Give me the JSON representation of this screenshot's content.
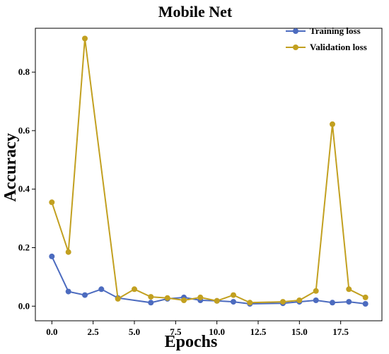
{
  "chart_data": {
    "type": "line",
    "title": "Mobile Net",
    "xlabel": "Epochs",
    "ylabel": "Accuracy",
    "xlim": [
      -1.0,
      20.0
    ],
    "ylim": [
      -0.05,
      0.95
    ],
    "xticks": [
      0.0,
      2.5,
      5.0,
      7.5,
      10.0,
      12.5,
      15.0,
      17.5
    ],
    "xtick_labels": [
      "0.0",
      "2.5",
      "5.0",
      "7.5",
      "10.0",
      "12.5",
      "15.0",
      "17.5"
    ],
    "yticks": [
      0.0,
      0.2,
      0.4,
      0.6,
      0.8
    ],
    "ytick_labels": [
      "0.0",
      "0.2",
      "0.4",
      "0.6",
      "0.8"
    ],
    "grid": false,
    "legend_position": "top-right",
    "x": [
      0,
      1,
      2,
      3,
      4,
      6,
      7,
      8,
      9,
      10,
      11,
      12,
      14,
      15,
      16,
      17,
      18,
      19
    ],
    "series": [
      {
        "name": "Training loss",
        "color": "#4c6bbf",
        "values": [
          0.17,
          0.05,
          0.038,
          0.058,
          0.028,
          0.012,
          0.025,
          0.03,
          0.02,
          0.018,
          0.015,
          0.008,
          0.01,
          0.015,
          0.02,
          0.012,
          0.015,
          0.008
        ]
      },
      {
        "name": "Validation loss",
        "color": "#c2a020",
        "values": [
          0.355,
          0.185,
          0.915,
          null,
          0.025,
          0.032,
          0.028,
          0.02,
          0.03,
          0.018,
          0.038,
          0.012,
          0.015,
          0.02,
          0.052,
          0.622,
          0.058,
          0.03
        ]
      }
    ],
    "validation_extra": {
      "x": [
        5
      ],
      "values": [
        0.058
      ]
    }
  }
}
